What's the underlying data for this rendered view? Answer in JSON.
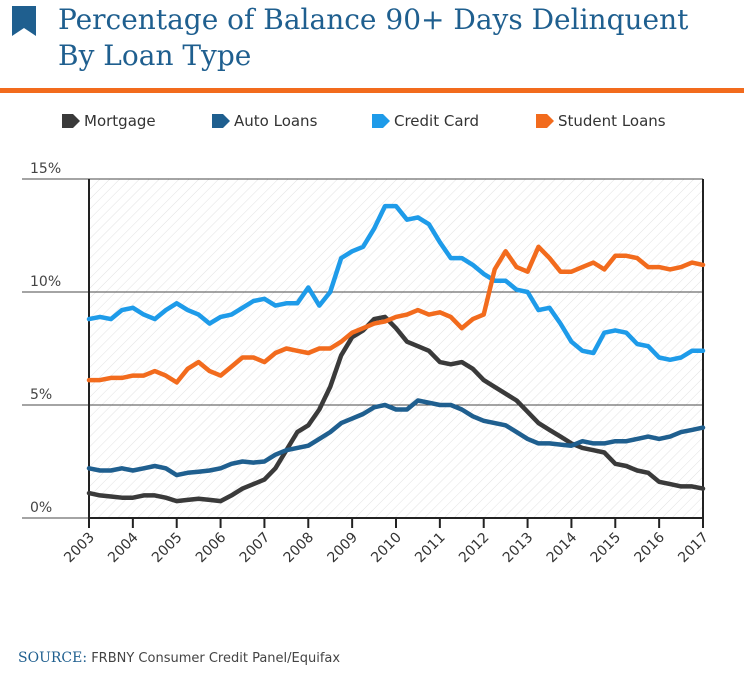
{
  "header": {
    "title_line1": "Percentage of Balance 90+ Days Delinquent",
    "title_line2": "By Loan Type",
    "flag_color": "#1f5f8f",
    "rule_color": "#f26b1d"
  },
  "source": {
    "label": "SOURCE:",
    "text": "FRBNY Consumer Credit Panel/Equifax"
  },
  "chart_data": {
    "type": "line",
    "title": "Percentage of Balance 90+ Days Delinquent By Loan Type",
    "xlabel": "",
    "ylabel": "",
    "grid": true,
    "legend_position": "top",
    "xlim": [
      2003,
      2017
    ],
    "ylim": [
      0,
      15
    ],
    "y_ticks": [
      0,
      5,
      10,
      15
    ],
    "y_tick_labels": [
      "0%",
      "5%",
      "10%",
      "15%"
    ],
    "x_ticks": [
      2003,
      2004,
      2005,
      2006,
      2007,
      2008,
      2009,
      2010,
      2011,
      2012,
      2013,
      2014,
      2015,
      2016,
      2017
    ],
    "x_tick_labels": [
      "2003",
      "2004",
      "2005",
      "2006",
      "2007",
      "2008",
      "2009",
      "2010",
      "2011",
      "2012",
      "2013",
      "2014",
      "2015",
      "2016",
      "2017"
    ],
    "series": [
      {
        "name": "Mortgage",
        "color": "#3a3a3a",
        "x": [
          2003.0,
          2003.25,
          2003.5,
          2003.75,
          2004.0,
          2004.25,
          2004.5,
          2004.75,
          2005.0,
          2005.25,
          2005.5,
          2005.75,
          2006.0,
          2006.25,
          2006.5,
          2006.75,
          2007.0,
          2007.25,
          2007.5,
          2007.75,
          2008.0,
          2008.25,
          2008.5,
          2008.75,
          2009.0,
          2009.25,
          2009.5,
          2009.75,
          2010.0,
          2010.25,
          2010.5,
          2010.75,
          2011.0,
          2011.25,
          2011.5,
          2011.75,
          2012.0,
          2012.25,
          2012.5,
          2012.75,
          2013.0,
          2013.25,
          2013.5,
          2013.75,
          2014.0,
          2014.25,
          2014.5,
          2014.75,
          2015.0,
          2015.25,
          2015.5,
          2015.75,
          2016.0,
          2016.25,
          2016.5,
          2016.75,
          2017.0
        ],
        "values": [
          1.1,
          1.0,
          0.95,
          0.9,
          0.9,
          1.0,
          1.0,
          0.9,
          0.75,
          0.8,
          0.85,
          0.8,
          0.75,
          1.0,
          1.3,
          1.5,
          1.7,
          2.2,
          3.0,
          3.8,
          4.1,
          4.8,
          5.8,
          7.2,
          8.0,
          8.3,
          8.8,
          8.9,
          8.4,
          7.8,
          7.6,
          7.4,
          6.9,
          6.8,
          6.9,
          6.6,
          6.1,
          5.8,
          5.5,
          5.2,
          4.7,
          4.2,
          3.9,
          3.6,
          3.3,
          3.1,
          3.0,
          2.9,
          2.4,
          2.3,
          2.1,
          2.0,
          1.6,
          1.5,
          1.4,
          1.4,
          1.3
        ]
      },
      {
        "name": "Auto Loans",
        "color": "#1f5f8f",
        "x": [
          2003.0,
          2003.25,
          2003.5,
          2003.75,
          2004.0,
          2004.25,
          2004.5,
          2004.75,
          2005.0,
          2005.25,
          2005.5,
          2005.75,
          2006.0,
          2006.25,
          2006.5,
          2006.75,
          2007.0,
          2007.25,
          2007.5,
          2007.75,
          2008.0,
          2008.25,
          2008.5,
          2008.75,
          2009.0,
          2009.25,
          2009.5,
          2009.75,
          2010.0,
          2010.25,
          2010.5,
          2010.75,
          2011.0,
          2011.25,
          2011.5,
          2011.75,
          2012.0,
          2012.25,
          2012.5,
          2012.75,
          2013.0,
          2013.25,
          2013.5,
          2013.75,
          2014.0,
          2014.25,
          2014.5,
          2014.75,
          2015.0,
          2015.25,
          2015.5,
          2015.75,
          2016.0,
          2016.25,
          2016.5,
          2016.75,
          2017.0
        ],
        "values": [
          2.2,
          2.1,
          2.1,
          2.2,
          2.1,
          2.2,
          2.3,
          2.2,
          1.9,
          2.0,
          2.05,
          2.1,
          2.2,
          2.4,
          2.5,
          2.45,
          2.5,
          2.8,
          3.0,
          3.1,
          3.2,
          3.5,
          3.8,
          4.2,
          4.4,
          4.6,
          4.9,
          5.0,
          4.8,
          4.8,
          5.2,
          5.1,
          5.0,
          5.0,
          4.8,
          4.5,
          4.3,
          4.2,
          4.1,
          3.8,
          3.5,
          3.3,
          3.3,
          3.25,
          3.2,
          3.4,
          3.3,
          3.3,
          3.4,
          3.4,
          3.5,
          3.6,
          3.5,
          3.6,
          3.8,
          3.9,
          4.0
        ]
      },
      {
        "name": "Credit Card",
        "color": "#1e9be9",
        "x": [
          2003.0,
          2003.25,
          2003.5,
          2003.75,
          2004.0,
          2004.25,
          2004.5,
          2004.75,
          2005.0,
          2005.25,
          2005.5,
          2005.75,
          2006.0,
          2006.25,
          2006.5,
          2006.75,
          2007.0,
          2007.25,
          2007.5,
          2007.75,
          2008.0,
          2008.25,
          2008.5,
          2008.75,
          2009.0,
          2009.25,
          2009.5,
          2009.75,
          2010.0,
          2010.25,
          2010.5,
          2010.75,
          2011.0,
          2011.25,
          2011.5,
          2011.75,
          2012.0,
          2012.25,
          2012.5,
          2012.75,
          2013.0,
          2013.25,
          2013.5,
          2013.75,
          2014.0,
          2014.25,
          2014.5,
          2014.75,
          2015.0,
          2015.25,
          2015.5,
          2015.75,
          2016.0,
          2016.25,
          2016.5,
          2016.75,
          2017.0
        ],
        "values": [
          8.8,
          8.9,
          8.8,
          9.2,
          9.3,
          9.0,
          8.8,
          9.2,
          9.5,
          9.2,
          9.0,
          8.6,
          8.9,
          9.0,
          9.3,
          9.6,
          9.7,
          9.4,
          9.5,
          9.5,
          10.2,
          9.4,
          10.0,
          11.5,
          11.8,
          12.0,
          12.8,
          13.8,
          13.8,
          13.2,
          13.3,
          13.0,
          12.2,
          11.5,
          11.5,
          11.2,
          10.8,
          10.5,
          10.5,
          10.1,
          10.0,
          9.2,
          9.3,
          8.6,
          7.8,
          7.4,
          7.3,
          8.2,
          8.3,
          8.2,
          7.7,
          7.6,
          7.1,
          7.0,
          7.1,
          7.4,
          7.4
        ]
      },
      {
        "name": "Student Loans",
        "color": "#f26b1d",
        "x": [
          2003.0,
          2003.25,
          2003.5,
          2003.75,
          2004.0,
          2004.25,
          2004.5,
          2004.75,
          2005.0,
          2005.25,
          2005.5,
          2005.75,
          2006.0,
          2006.25,
          2006.5,
          2006.75,
          2007.0,
          2007.25,
          2007.5,
          2007.75,
          2008.0,
          2008.25,
          2008.5,
          2008.75,
          2009.0,
          2009.25,
          2009.5,
          2009.75,
          2010.0,
          2010.25,
          2010.5,
          2010.75,
          2011.0,
          2011.25,
          2011.5,
          2011.75,
          2012.0,
          2012.25,
          2012.5,
          2012.75,
          2013.0,
          2013.25,
          2013.5,
          2013.75,
          2014.0,
          2014.25,
          2014.5,
          2014.75,
          2015.0,
          2015.25,
          2015.5,
          2015.75,
          2016.0,
          2016.25,
          2016.5,
          2016.75,
          2017.0
        ],
        "values": [
          6.1,
          6.1,
          6.2,
          6.2,
          6.3,
          6.3,
          6.5,
          6.3,
          6.0,
          6.6,
          6.9,
          6.5,
          6.3,
          6.7,
          7.1,
          7.1,
          6.9,
          7.3,
          7.5,
          7.4,
          7.3,
          7.5,
          7.5,
          7.8,
          8.2,
          8.4,
          8.6,
          8.7,
          8.9,
          9.0,
          9.2,
          9.0,
          9.1,
          8.9,
          8.4,
          8.8,
          9.0,
          11.0,
          11.8,
          11.1,
          10.9,
          12.0,
          11.5,
          10.9,
          10.9,
          11.1,
          11.3,
          11.0,
          11.6,
          11.6,
          11.5,
          11.1,
          11.1,
          11.0,
          11.1,
          11.3,
          11.2
        ]
      }
    ]
  }
}
